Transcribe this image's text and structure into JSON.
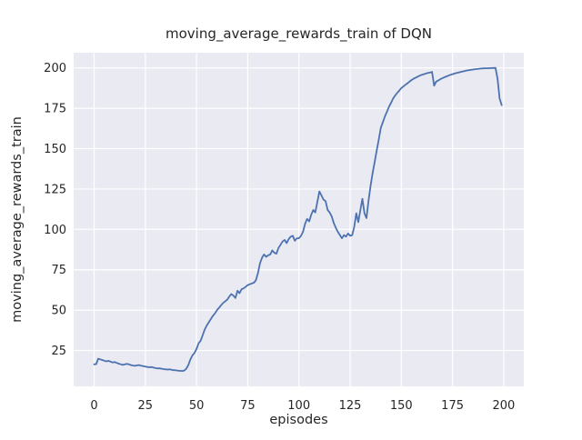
{
  "chart_data": {
    "type": "line",
    "title": "moving_average_rewards_train of DQN",
    "xlabel": "episodes",
    "ylabel": "moving_average_rewards_train",
    "x_ticks": [
      0,
      25,
      50,
      75,
      100,
      125,
      150,
      175,
      200
    ],
    "y_ticks": [
      25,
      50,
      75,
      100,
      125,
      150,
      175,
      200
    ],
    "xlim": [
      -10,
      209.8
    ],
    "ylim": [
      2.8,
      209.4
    ],
    "grid": true,
    "legend": false,
    "style": "seaborn-darkgrid",
    "colors": {
      "line": "#4c72b0",
      "plot_bg": "#eaeaf2",
      "grid": "#ffffff",
      "text": "#262626",
      "figure_bg": "#ffffff"
    },
    "series": [
      {
        "name": "DQN",
        "x_start": 0,
        "x_step": 1,
        "values": [
          16.4,
          16.6,
          19.9,
          19.5,
          19.1,
          18.7,
          18.3,
          18.6,
          18.1,
          17.6,
          17.9,
          17.3,
          16.9,
          16.5,
          16.1,
          16.4,
          16.7,
          16.4,
          16.0,
          15.7,
          15.5,
          15.8,
          16.0,
          15.6,
          15.3,
          15.1,
          14.8,
          14.6,
          14.8,
          14.4,
          14.1,
          13.9,
          14.0,
          13.7,
          13.5,
          13.3,
          13.2,
          13.3,
          13.0,
          12.8,
          12.7,
          12.5,
          12.4,
          12.3,
          12.6,
          13.8,
          16.0,
          19.5,
          22.0,
          23.5,
          26.0,
          29.5,
          31.0,
          34.5,
          38.0,
          40.5,
          42.5,
          44.5,
          46.5,
          48.0,
          50.0,
          51.5,
          53.0,
          54.5,
          55.5,
          56.5,
          58.5,
          60.0,
          59.0,
          57.5,
          62.0,
          60.5,
          63.0,
          63.5,
          64.5,
          65.5,
          66.0,
          66.5,
          67.0,
          68.5,
          73.0,
          79.0,
          82.5,
          84.5,
          83.0,
          84.0,
          84.5,
          87.0,
          85.5,
          85.0,
          88.5,
          90.5,
          92.5,
          93.5,
          91.5,
          94.0,
          95.5,
          96.0,
          93.0,
          94.5,
          94.5,
          96.0,
          98.5,
          103.5,
          106.5,
          105.0,
          109.0,
          112.0,
          110.5,
          117.0,
          123.5,
          121.0,
          118.5,
          117.5,
          112.0,
          110.5,
          108.0,
          104.0,
          101.0,
          98.5,
          96.5,
          94.5,
          96.5,
          95.5,
          97.5,
          96.0,
          96.5,
          101.5,
          110.0,
          104.5,
          112.0,
          119.0,
          110.0,
          107.0,
          118.0,
          127.0,
          135.0,
          142.0,
          149.0,
          156.0,
          163.0,
          166.5,
          170.0,
          173.0,
          176.0,
          178.5,
          181.0,
          183.0,
          184.5,
          186.0,
          187.5,
          188.5,
          189.5,
          190.5,
          191.5,
          192.5,
          193.3,
          194.0,
          194.6,
          195.2,
          195.7,
          196.1,
          196.5,
          196.9,
          197.2,
          197.5,
          189.0,
          191.5,
          192.2,
          193.0,
          193.6,
          194.2,
          194.7,
          195.2,
          195.7,
          196.1,
          196.5,
          196.9,
          197.2,
          197.5,
          197.8,
          198.1,
          198.4,
          198.6,
          198.8,
          199.0,
          199.2,
          199.35,
          199.5,
          199.6,
          199.7,
          199.75,
          199.8,
          199.85,
          199.9,
          199.95,
          200.0,
          193.0,
          181.0,
          177.0
        ]
      }
    ]
  }
}
